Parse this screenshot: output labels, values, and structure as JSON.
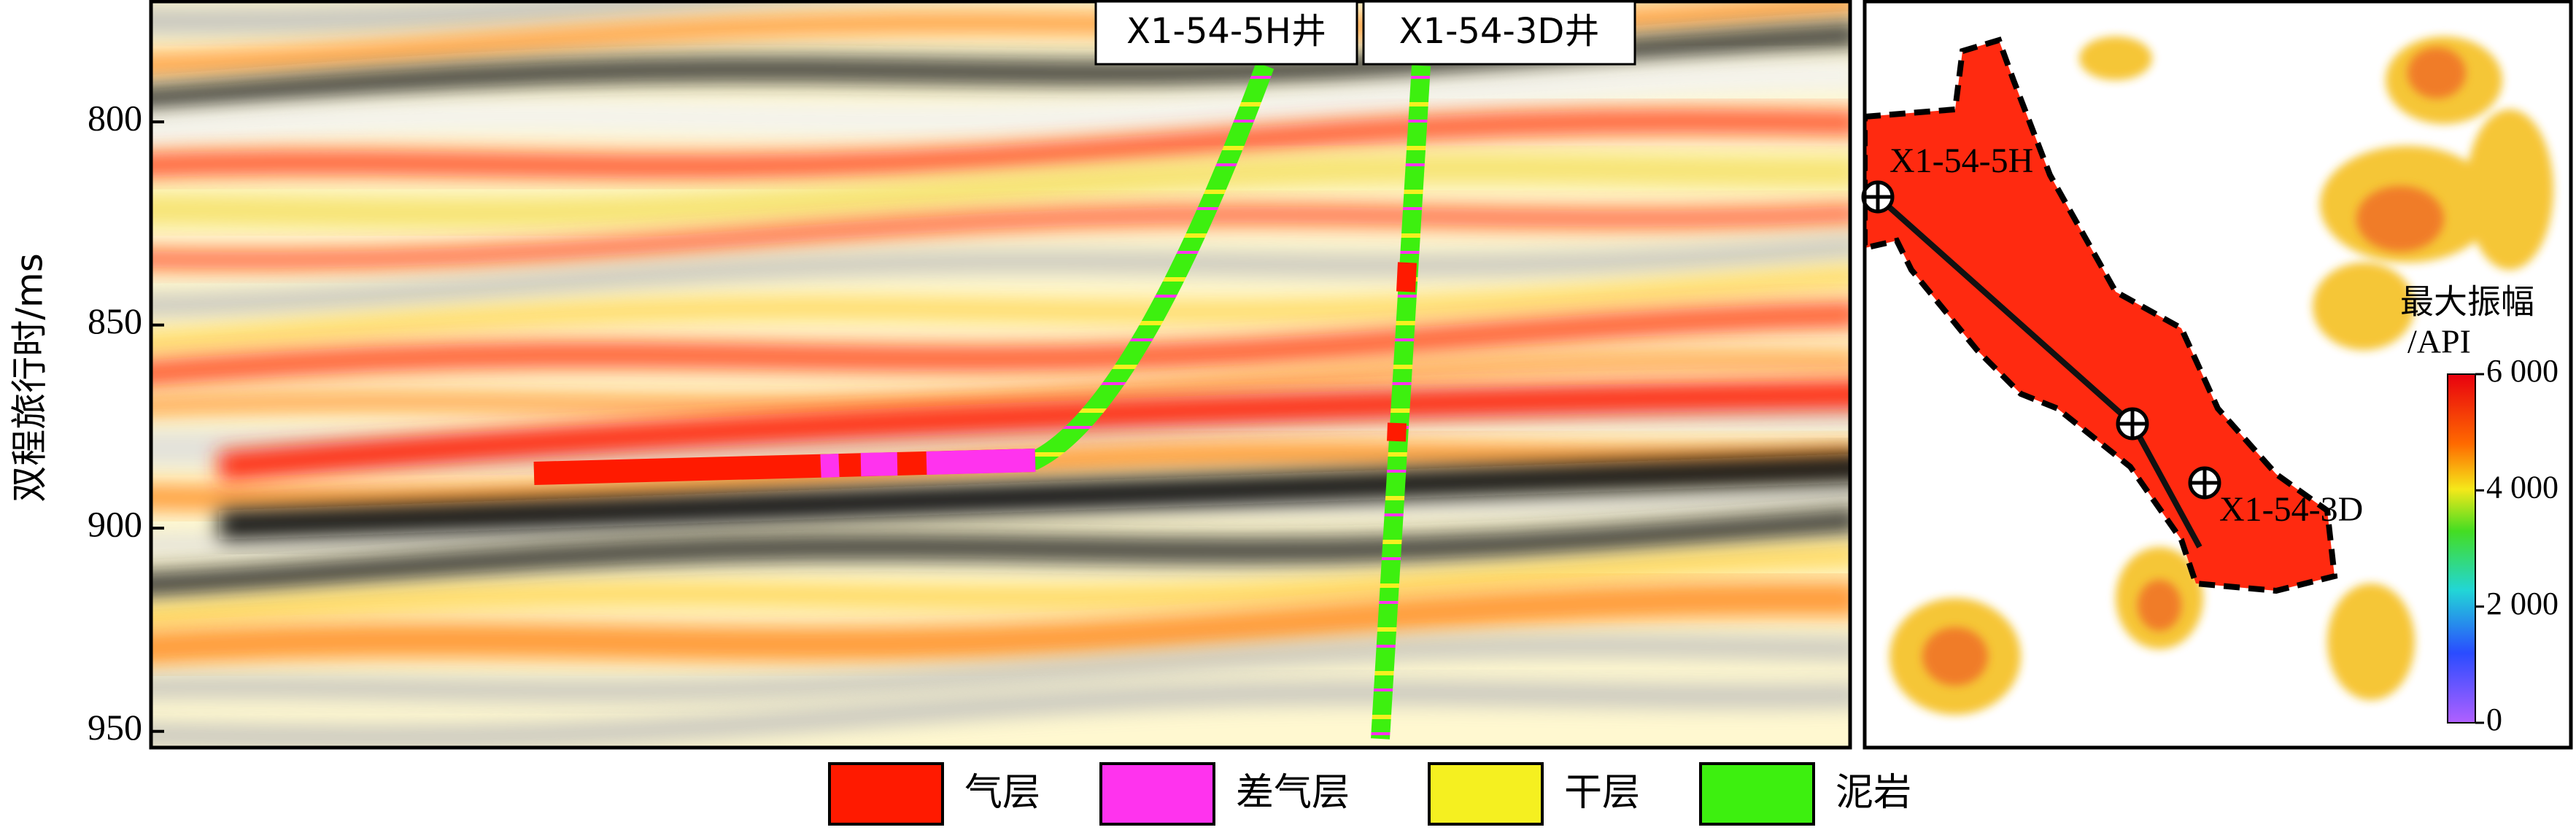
{
  "section": {
    "y_axis_label": "双程旅行时/ms",
    "ylim": [
      770,
      954
    ],
    "yticks": [
      800,
      850,
      900,
      950
    ],
    "wells": [
      "X1-54-5H井",
      "X1-54-3D井"
    ]
  },
  "map": {
    "wells": [
      "X1-54-5H",
      "X1-54-3D"
    ],
    "colorbar": {
      "title": "最大振幅",
      "unit": "/API",
      "lim": [
        0,
        6000
      ],
      "ticks": [
        {
          "value": 6000,
          "label": "6 000"
        },
        {
          "value": 4000,
          "label": "4 000"
        },
        {
          "value": 2000,
          "label": "2 000"
        },
        0
      ]
    }
  },
  "legend": [
    {
      "label": "气层",
      "color": "#ff1a00"
    },
    {
      "label": "差气层",
      "color": "#ff33ee"
    },
    {
      "label": "干层",
      "color": "#f5f020"
    },
    {
      "label": "泥岩",
      "color": "#3df00f"
    }
  ]
}
